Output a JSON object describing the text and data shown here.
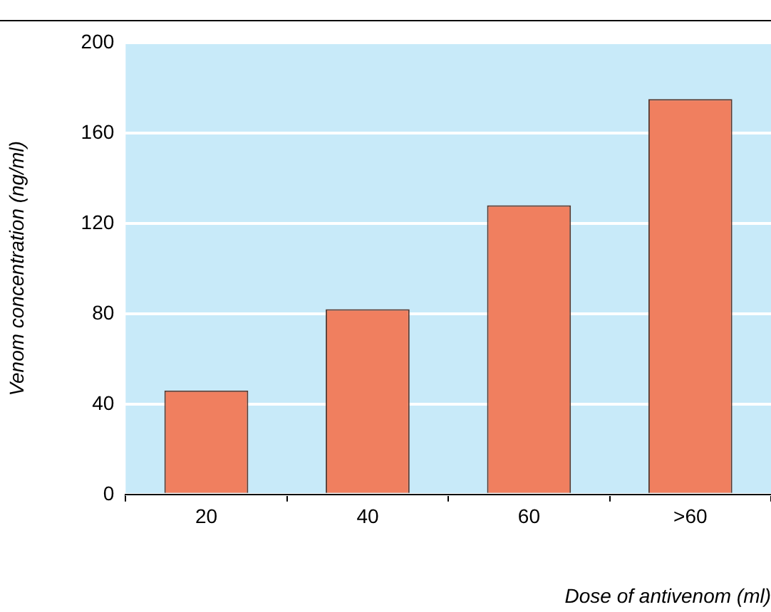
{
  "chart_data": {
    "type": "bar",
    "xlabel": "Dose of antivenom (ml)",
    "ylabel": "Venom concentration (ng/ml)",
    "categories": [
      "20",
      "40",
      "60",
      ">60"
    ],
    "values": [
      46,
      82,
      128,
      175
    ],
    "color": "#f07f5f",
    "ylim": [
      0,
      200
    ],
    "yticks": [
      0,
      40,
      80,
      120,
      160,
      200
    ],
    "grid": "y",
    "legend": false
  }
}
